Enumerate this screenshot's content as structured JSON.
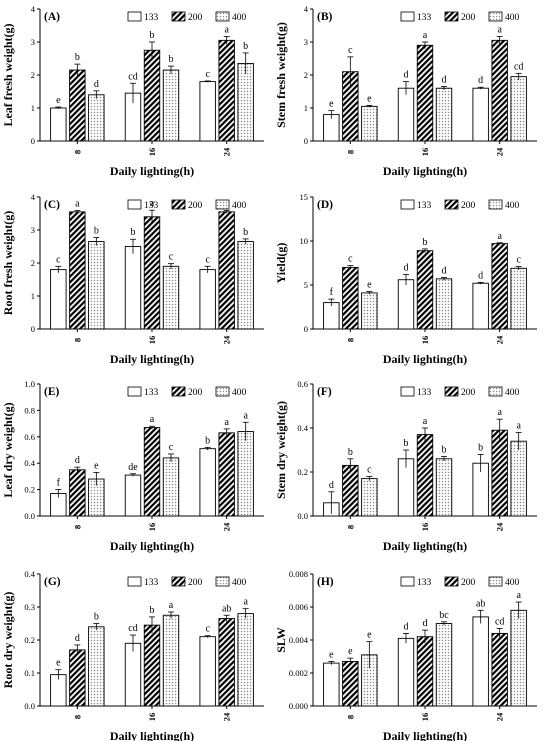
{
  "colors": {
    "axis": "#000000",
    "bar_fill": "#ffffff",
    "pattern_200": "#000000",
    "pattern_400": "#9a9a9a"
  },
  "chart_data": [
    {
      "type": "bar",
      "panel": "(A)",
      "xlabel": "Daily lighting(h)",
      "ylabel": "Leaf fresh weight(g)",
      "categories": [
        "8",
        "16",
        "24"
      ],
      "ylim": [
        0,
        4
      ],
      "yticks": [
        "0",
        "1",
        "2",
        "3",
        "4"
      ],
      "series": [
        {
          "name": "133",
          "values": [
            1.0,
            1.45,
            1.8
          ],
          "errors": [
            0.03,
            0.3,
            0.02
          ],
          "letters": [
            "e",
            "cd",
            "c"
          ]
        },
        {
          "name": "200",
          "values": [
            2.15,
            2.75,
            3.05
          ],
          "errors": [
            0.18,
            0.25,
            0.12
          ],
          "letters": [
            "b",
            "b",
            "a"
          ]
        },
        {
          "name": "400",
          "values": [
            1.4,
            2.15,
            2.35
          ],
          "errors": [
            0.12,
            0.12,
            0.32
          ],
          "letters": [
            "d",
            "b",
            "b"
          ]
        }
      ]
    },
    {
      "type": "bar",
      "panel": "(B)",
      "xlabel": "Daily lighting(h)",
      "ylabel": "Stem fresh weight(g)",
      "categories": [
        "8",
        "16",
        "24"
      ],
      "ylim": [
        0,
        4
      ],
      "yticks": [
        "0",
        "1",
        "2",
        "3",
        "4"
      ],
      "series": [
        {
          "name": "133",
          "values": [
            0.8,
            1.6,
            1.6
          ],
          "errors": [
            0.12,
            0.2,
            0.03
          ],
          "letters": [
            "e",
            "d",
            "d"
          ]
        },
        {
          "name": "200",
          "values": [
            2.1,
            2.9,
            3.05
          ],
          "errors": [
            0.45,
            0.1,
            0.12
          ],
          "letters": [
            "c",
            "a",
            "a"
          ]
        },
        {
          "name": "400",
          "values": [
            1.05,
            1.6,
            1.95
          ],
          "errors": [
            0.03,
            0.05,
            0.1
          ],
          "letters": [
            "e",
            "d",
            "cd"
          ]
        }
      ]
    },
    {
      "type": "bar",
      "panel": "(C)",
      "xlabel": "Daily lighting(h)",
      "ylabel": "Root fresh weight(g)",
      "categories": [
        "8",
        "16",
        "24"
      ],
      "ylim": [
        0,
        4
      ],
      "yticks": [
        "0",
        "1",
        "2",
        "3",
        "4"
      ],
      "series": [
        {
          "name": "133",
          "values": [
            1.8,
            2.5,
            1.8
          ],
          "errors": [
            0.1,
            0.22,
            0.1
          ],
          "letters": [
            "c",
            "b",
            "c"
          ]
        },
        {
          "name": "200",
          "values": [
            3.55,
            3.4,
            3.55
          ],
          "errors": [
            0.04,
            0.2,
            0.04
          ],
          "letters": [
            "a",
            "a",
            "a"
          ]
        },
        {
          "name": "400",
          "values": [
            2.65,
            1.9,
            2.65
          ],
          "errors": [
            0.12,
            0.08,
            0.08
          ],
          "letters": [
            "b",
            "c",
            "b"
          ]
        }
      ]
    },
    {
      "type": "bar",
      "panel": "(D)",
      "xlabel": "Daily lighting(h)",
      "ylabel": "Yield(g)",
      "categories": [
        "8",
        "16",
        "24"
      ],
      "ylim": [
        0,
        15
      ],
      "yticks": [
        "0",
        "5",
        "10",
        "15"
      ],
      "series": [
        {
          "name": "133",
          "values": [
            3.0,
            5.6,
            5.2
          ],
          "errors": [
            0.4,
            0.6,
            0.1
          ],
          "letters": [
            "f",
            "d",
            "d"
          ]
        },
        {
          "name": "200",
          "values": [
            7.0,
            8.9,
            9.7
          ],
          "errors": [
            0.2,
            0.2,
            0.1
          ],
          "letters": [
            "c",
            "b",
            "a"
          ]
        },
        {
          "name": "400",
          "values": [
            4.1,
            5.7,
            6.9
          ],
          "errors": [
            0.15,
            0.15,
            0.2
          ],
          "letters": [
            "e",
            "d",
            "c"
          ]
        }
      ]
    },
    {
      "type": "bar",
      "panel": "(E)",
      "xlabel": "Daily lighting(h)",
      "ylabel": "Leaf dry weight(g)",
      "categories": [
        "8",
        "16",
        "24"
      ],
      "ylim": [
        0,
        1.0
      ],
      "yticks": [
        "0.0",
        "0.2",
        "0.4",
        "0.6",
        "0.8",
        "1.0"
      ],
      "series": [
        {
          "name": "133",
          "values": [
            0.17,
            0.31,
            0.51
          ],
          "errors": [
            0.03,
            0.01,
            0.01
          ],
          "letters": [
            "f",
            "de",
            "b"
          ]
        },
        {
          "name": "200",
          "values": [
            0.35,
            0.67,
            0.63
          ],
          "errors": [
            0.02,
            0.01,
            0.03
          ],
          "letters": [
            "d",
            "a",
            "a"
          ]
        },
        {
          "name": "400",
          "values": [
            0.28,
            0.44,
            0.64
          ],
          "errors": [
            0.05,
            0.03,
            0.07
          ],
          "letters": [
            "e",
            "c",
            "a"
          ]
        }
      ]
    },
    {
      "type": "bar",
      "panel": "(F)",
      "xlabel": "Daily lighting(h)",
      "ylabel": "Stem dry weight(g)",
      "categories": [
        "8",
        "16",
        "24"
      ],
      "ylim": [
        0,
        0.6
      ],
      "yticks": [
        "0.0",
        "0.2",
        "0.4",
        "0.6"
      ],
      "series": [
        {
          "name": "133",
          "values": [
            0.06,
            0.26,
            0.24
          ],
          "errors": [
            0.05,
            0.04,
            0.04
          ],
          "letters": [
            "d",
            "b",
            "b"
          ]
        },
        {
          "name": "200",
          "values": [
            0.23,
            0.37,
            0.39
          ],
          "errors": [
            0.03,
            0.03,
            0.05
          ],
          "letters": [
            "b",
            "a",
            "a"
          ]
        },
        {
          "name": "400",
          "values": [
            0.17,
            0.26,
            0.34
          ],
          "errors": [
            0.01,
            0.01,
            0.04
          ],
          "letters": [
            "c",
            "b",
            "a"
          ]
        }
      ]
    },
    {
      "type": "bar",
      "panel": "(G)",
      "xlabel": "Daily lighting(h)",
      "ylabel": "Root dry weight(g)",
      "categories": [
        "8",
        "16",
        "24"
      ],
      "ylim": [
        0,
        0.4
      ],
      "yticks": [
        "0.0",
        "0.1",
        "0.2",
        "0.3",
        "0.4"
      ],
      "series": [
        {
          "name": "133",
          "values": [
            0.095,
            0.19,
            0.21
          ],
          "errors": [
            0.015,
            0.025,
            0.003
          ],
          "letters": [
            "e",
            "cd",
            "c"
          ]
        },
        {
          "name": "200",
          "values": [
            0.17,
            0.245,
            0.265
          ],
          "errors": [
            0.015,
            0.025,
            0.01
          ],
          "letters": [
            "d",
            "b",
            "ab"
          ]
        },
        {
          "name": "400",
          "values": [
            0.24,
            0.275,
            0.28
          ],
          "errors": [
            0.01,
            0.01,
            0.015
          ],
          "letters": [
            "b",
            "a",
            "a"
          ]
        }
      ]
    },
    {
      "type": "bar",
      "panel": "(H)",
      "xlabel": "Daily lighting(h)",
      "ylabel": "SLW",
      "categories": [
        "8",
        "16",
        "24"
      ],
      "ylim": [
        0,
        0.008
      ],
      "yticks": [
        "0.000",
        "0.002",
        "0.004",
        "0.006",
        "0.008"
      ],
      "series": [
        {
          "name": "133",
          "values": [
            0.0026,
            0.0041,
            0.0054
          ],
          "errors": [
            0.0001,
            0.0003,
            0.0004
          ],
          "letters": [
            "e",
            "d",
            "ab"
          ]
        },
        {
          "name": "200",
          "values": [
            0.0027,
            0.0042,
            0.0044
          ],
          "errors": [
            0.0002,
            0.0004,
            0.0003
          ],
          "letters": [
            "e",
            "d",
            "cd"
          ]
        },
        {
          "name": "400",
          "values": [
            0.0031,
            0.005,
            0.0058
          ],
          "errors": [
            0.0008,
            0.0001,
            0.0005
          ],
          "letters": [
            "e",
            "bc",
            "a"
          ]
        }
      ]
    }
  ]
}
